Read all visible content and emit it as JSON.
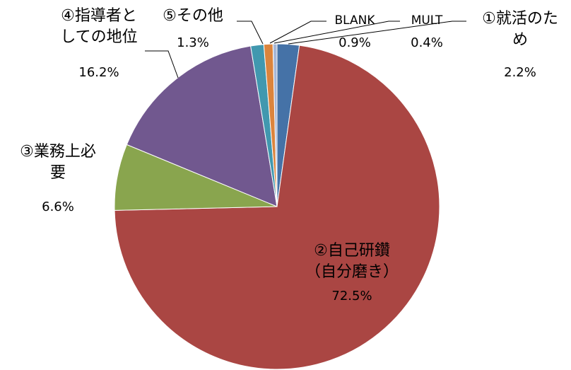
{
  "chart_data": {
    "type": "pie",
    "categories": [
      "①就活のため",
      "②自己研鑽（自分磨き）",
      "③業務上必要",
      "④指導者としての地位",
      "⑤その他",
      "BLANK",
      "MULT"
    ],
    "values": [
      2.2,
      72.5,
      6.6,
      16.2,
      1.3,
      0.9,
      0.4
    ],
    "value_labels": [
      "2.2%",
      "72.5%",
      "6.6%",
      "16.2%",
      "1.3%",
      "0.9%",
      "0.4%"
    ],
    "colors": [
      "#4572a7",
      "#aa4643",
      "#89a54e",
      "#71588f",
      "#4198af",
      "#db843d",
      "#a5b6d6"
    ]
  }
}
